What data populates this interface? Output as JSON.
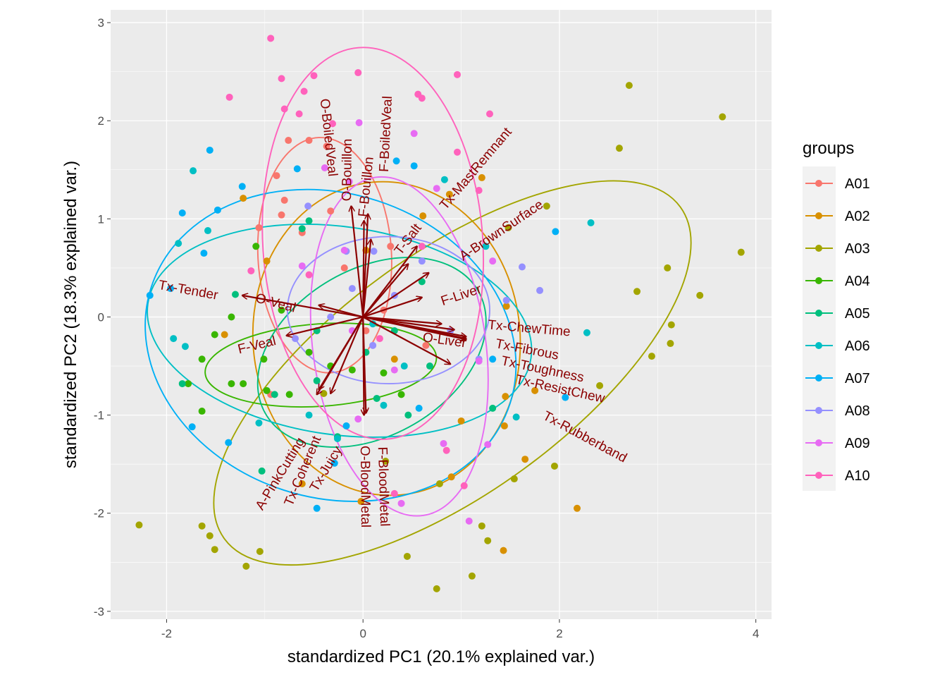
{
  "chart_data": {
    "type": "scatter",
    "subtype": "pca-biplot",
    "xlabel": "standardized PC1 (20.1% explained var.)",
    "ylabel": "standardized PC2 (18.3% explained var.)",
    "xlim": [
      -2.57,
      4.16
    ],
    "ylim": [
      -3.08,
      3.13
    ],
    "xticks": [
      -2,
      0,
      2,
      4
    ],
    "yticks": [
      -3,
      -2,
      -1,
      0,
      1,
      2,
      3
    ],
    "xtick_labels": [
      "-2",
      "0",
      "2",
      "4"
    ],
    "ytick_labels": [
      "-3",
      "-2",
      "-1",
      "0",
      "1",
      "2",
      "3"
    ],
    "grid": true,
    "legend": {
      "title": "groups",
      "position": "right"
    },
    "series": [
      {
        "name": "A01",
        "color": "#F8766D",
        "ellipse": {
          "cx": -0.39,
          "cy": 0.63,
          "a": 0.68,
          "b": 1.2,
          "angle": 3
        },
        "points": [
          [
            -0.55,
            1.8
          ],
          [
            -0.37,
            1.74
          ],
          [
            -0.76,
            1.8
          ],
          [
            -0.88,
            1.44
          ],
          [
            -0.8,
            1.19
          ],
          [
            -1.06,
            0.91
          ],
          [
            -0.83,
            1.04
          ],
          [
            -0.33,
            1.08
          ],
          [
            -0.19,
            0.5
          ],
          [
            0.28,
            0.72
          ],
          [
            -0.94,
            -0.79
          ],
          [
            -0.62,
            0.86
          ],
          [
            0.03,
            -0.14
          ],
          [
            0.21,
            0.07
          ],
          [
            0.64,
            -0.29
          ]
        ]
      },
      {
        "name": "A02",
        "color": "#D89000",
        "ellipse": {
          "cx": 0.24,
          "cy": -0.22,
          "a": 1.36,
          "b": 1.6,
          "angle": 5
        },
        "points": [
          [
            1.21,
            1.42
          ],
          [
            0.88,
            1.25
          ],
          [
            0.61,
            1.03
          ],
          [
            1.46,
            0.11
          ],
          [
            1.45,
            -0.81
          ],
          [
            1.44,
            -1.11
          ],
          [
            1.65,
            -1.45
          ],
          [
            2.18,
            -1.95
          ],
          [
            1.43,
            -2.38
          ],
          [
            -0.02,
            -1.88
          ],
          [
            -0.62,
            -1.7
          ],
          [
            -1.22,
            1.21
          ],
          [
            -1.41,
            -0.18
          ],
          [
            0.9,
            -1.63
          ],
          [
            1.0,
            -1.06
          ],
          [
            1.75,
            -0.75
          ],
          [
            -0.98,
            0.57
          ],
          [
            0.03,
            0.68
          ],
          [
            0.32,
            -0.43
          ]
        ]
      },
      {
        "name": "A03",
        "color": "#A3A500",
        "ellipse": {
          "cx": 0.91,
          "cy": -0.57,
          "a": 2.87,
          "b": 1.22,
          "angle": 36
        },
        "points": [
          [
            2.71,
            2.36
          ],
          [
            3.66,
            2.04
          ],
          [
            2.61,
            1.72
          ],
          [
            3.85,
            0.66
          ],
          [
            3.1,
            0.5
          ],
          [
            2.79,
            0.26
          ],
          [
            3.43,
            0.22
          ],
          [
            3.14,
            -0.08
          ],
          [
            3.13,
            -0.27
          ],
          [
            2.94,
            -0.4
          ],
          [
            2.41,
            -0.7
          ],
          [
            1.95,
            -1.52
          ],
          [
            1.54,
            -1.65
          ],
          [
            1.21,
            -2.13
          ],
          [
            1.27,
            -2.28
          ],
          [
            1.11,
            -2.64
          ],
          [
            0.75,
            -2.77
          ],
          [
            0.45,
            -2.44
          ],
          [
            0.78,
            -1.7
          ],
          [
            -2.28,
            -2.12
          ],
          [
            -1.64,
            -2.13
          ],
          [
            -1.56,
            -2.23
          ],
          [
            -1.51,
            -2.37
          ],
          [
            -1.19,
            -2.54
          ],
          [
            -1.05,
            -2.39
          ],
          [
            0.23,
            -1.47
          ],
          [
            1.87,
            1.13
          ],
          [
            1.48,
            0.91
          ],
          [
            -0.4,
            -0.78
          ]
        ]
      },
      {
        "name": "A04",
        "color": "#39B600",
        "ellipse": {
          "cx": -0.43,
          "cy": -0.49,
          "a": 1.18,
          "b": 0.42,
          "angle": 4
        },
        "points": [
          [
            -1.51,
            -0.18
          ],
          [
            -1.64,
            -0.43
          ],
          [
            -1.34,
            -0.68
          ],
          [
            -1.22,
            -0.68
          ],
          [
            -0.98,
            -0.75
          ],
          [
            -0.75,
            -0.79
          ],
          [
            -0.55,
            -0.36
          ],
          [
            -0.33,
            -0.5
          ],
          [
            -0.11,
            -0.54
          ],
          [
            0.21,
            -0.57
          ],
          [
            0.39,
            -0.79
          ],
          [
            -1.34,
            0
          ],
          [
            -1.09,
            0.72
          ],
          [
            -1.78,
            -0.68
          ],
          [
            -1.64,
            -0.96
          ],
          [
            -1.01,
            -0.43
          ],
          [
            -0.83,
            0.07
          ]
        ]
      },
      {
        "name": "A05",
        "color": "#00BF7D",
        "ellipse": {
          "cx": 0.09,
          "cy": -0.36,
          "a": 1.25,
          "b": 0.85,
          "angle": 30
        },
        "points": [
          [
            -0.55,
            0.98
          ],
          [
            -0.62,
            0.9
          ],
          [
            -1.3,
            0.23
          ],
          [
            -1.03,
            -1.57
          ],
          [
            -1.84,
            -0.68
          ],
          [
            -0.47,
            -0.65
          ],
          [
            0.03,
            -0.36
          ],
          [
            0.32,
            -0.14
          ],
          [
            0.6,
            0.36
          ],
          [
            0.68,
            -0.5
          ],
          [
            -0.26,
            -1.22
          ],
          [
            0.14,
            -0.83
          ],
          [
            1.32,
            -0.93
          ],
          [
            -0.47,
            -0.14
          ],
          [
            0.46,
            -1.0
          ],
          [
            -0.9,
            -0.79
          ]
        ]
      },
      {
        "name": "A06",
        "color": "#00BFC4",
        "ellipse": {
          "cx": -0.24,
          "cy": -0.14,
          "a": 1.97,
          "b": 1.06,
          "angle": -8
        },
        "points": [
          [
            0.83,
            1.4
          ],
          [
            2.32,
            0.96
          ],
          [
            2.28,
            -0.16
          ],
          [
            1.56,
            -1.02
          ],
          [
            -1.73,
            1.49
          ],
          [
            -1.88,
            0.75
          ],
          [
            -1.58,
            0.88
          ],
          [
            -1.81,
            -0.3
          ],
          [
            -1.93,
            -0.22
          ],
          [
            -1.06,
            -1.08
          ],
          [
            -0.55,
            -1.0
          ],
          [
            0.1,
            -0.07
          ],
          [
            0.42,
            -0.5
          ],
          [
            1.25,
            0.72
          ],
          [
            -0.26,
            -1.24
          ],
          [
            0.21,
            -0.9
          ]
        ]
      },
      {
        "name": "A07",
        "color": "#00B0F6",
        "ellipse": {
          "cx": -0.33,
          "cy": -0.29,
          "a": 1.92,
          "b": 1.55,
          "angle": -18
        },
        "points": [
          [
            -1.56,
            1.7
          ],
          [
            -1.23,
            1.33
          ],
          [
            -1.84,
            1.06
          ],
          [
            -2.17,
            0.22
          ],
          [
            -1.96,
            0.29
          ],
          [
            -1.74,
            -1.12
          ],
          [
            -1.37,
            -1.28
          ],
          [
            -0.47,
            -1.95
          ],
          [
            -0.29,
            -1.49
          ],
          [
            -0.17,
            -1.11
          ],
          [
            0.34,
            1.59
          ],
          [
            0.52,
            1.54
          ],
          [
            1.96,
            0.87
          ],
          [
            2.06,
            -0.82
          ],
          [
            -0.67,
            1.51
          ],
          [
            -1.48,
            1.09
          ],
          [
            -1.62,
            0.65
          ],
          [
            1.32,
            -0.43
          ],
          [
            0.57,
            -0.93
          ]
        ]
      },
      {
        "name": "A08",
        "color": "#9590FF",
        "ellipse": {
          "cx": 0.26,
          "cy": 0.07,
          "a": 1.03,
          "b": 0.75,
          "angle": 0
        },
        "points": [
          [
            1.62,
            0.51
          ],
          [
            1.8,
            0.27
          ],
          [
            1.46,
            0.17
          ],
          [
            -0.56,
            1.13
          ],
          [
            -0.17,
            0.67
          ],
          [
            0.11,
            0.67
          ],
          [
            0.32,
            0.22
          ],
          [
            0.6,
            0.57
          ],
          [
            -0.33,
            0
          ],
          [
            -0.69,
            -0.22
          ],
          [
            0.89,
            -0.14
          ],
          [
            -0.11,
            0.29
          ],
          [
            1.18,
            -0.43
          ],
          [
            0.1,
            -0.29
          ]
        ]
      },
      {
        "name": "A09",
        "color": "#E76BF3",
        "ellipse": {
          "cx": 0.37,
          "cy": -0.3,
          "a": 0.88,
          "b": 1.74,
          "angle": 8
        },
        "points": [
          [
            -0.04,
            1.98
          ],
          [
            0.52,
            1.87
          ],
          [
            -0.39,
            1.52
          ],
          [
            0.75,
            1.31
          ],
          [
            -0.14,
            1.38
          ],
          [
            1.08,
            -2.08
          ],
          [
            0.39,
            -1.9
          ],
          [
            1.27,
            -1.3
          ],
          [
            0.82,
            -1.29
          ],
          [
            -0.05,
            -1.04
          ],
          [
            1.18,
            -0.45
          ],
          [
            1.32,
            0.57
          ],
          [
            -0.62,
            0.52
          ],
          [
            -0.11,
            -0.14
          ],
          [
            0.32,
            -0.54
          ],
          [
            -0.19,
            0.68
          ]
        ]
      },
      {
        "name": "A10",
        "color": "#FF62BC",
        "ellipse": {
          "cx": 0.1,
          "cy": 0.75,
          "a": 1.12,
          "b": 2.0,
          "angle": 4
        },
        "points": [
          [
            -0.94,
            2.84
          ],
          [
            -0.05,
            2.49
          ],
          [
            -0.83,
            2.43
          ],
          [
            -0.5,
            2.46
          ],
          [
            -1.36,
            2.24
          ],
          [
            -0.6,
            2.3
          ],
          [
            0.96,
            2.47
          ],
          [
            0.56,
            2.27
          ],
          [
            0.6,
            2.23
          ],
          [
            1.29,
            2.07
          ],
          [
            -0.8,
            2.12
          ],
          [
            -0.65,
            2.07
          ],
          [
            -0.31,
            1.97
          ],
          [
            0.96,
            1.68
          ],
          [
            1.18,
            1.29
          ],
          [
            -1.14,
            0.47
          ],
          [
            0.6,
            0.72
          ],
          [
            -0.55,
            0.43
          ],
          [
            0.17,
            -0.22
          ],
          [
            0.85,
            -1.36
          ],
          [
            0.32,
            -1.8
          ],
          [
            1.03,
            -1.72
          ]
        ]
      }
    ],
    "loadings": [
      {
        "name": "O-BoiledVeal",
        "x": -0.12,
        "y": 1.13,
        "lx": -0.22,
        "ly": 1.83
      },
      {
        "name": "F-BoiledVeal",
        "x": 0.05,
        "y": 1.05,
        "lx": 0.12,
        "ly": 1.87
      },
      {
        "name": "O-Bouillon",
        "x": 0.01,
        "y": 0.98,
        "lx": -0.03,
        "ly": 1.5
      },
      {
        "name": "F-Bouillon",
        "x": 0.08,
        "y": 0.79,
        "lx": 0.09,
        "ly": 1.33
      },
      {
        "name": "Tx-MastRemnant",
        "x": 0.46,
        "y": 0.54,
        "lx": 1.15,
        "ly": 1.51
      },
      {
        "name": "A-BrownSurface",
        "x": 0.67,
        "y": 0.45,
        "lx": 1.41,
        "ly": 0.88
      },
      {
        "name": "T-Salt",
        "x": 0.55,
        "y": 0.72,
        "lx": 0.46,
        "ly": 0.79
      },
      {
        "name": "F-Liver",
        "x": 0.6,
        "y": 0.2,
        "lx": 1.0,
        "ly": 0.22
      },
      {
        "name": "Tx-Tender",
        "x": -1.23,
        "y": 0.22,
        "lx": -1.78,
        "ly": 0.27
      },
      {
        "name": "O-Veal",
        "x": -0.45,
        "y": 0.12,
        "lx": -0.89,
        "ly": 0.14
      },
      {
        "name": "F-Veal",
        "x": -0.78,
        "y": -0.19,
        "lx": -1.08,
        "ly": -0.29
      },
      {
        "name": "Tx-ChewTime",
        "x": 0.8,
        "y": -0.07,
        "lx": 1.69,
        "ly": -0.16
      },
      {
        "name": "O-Liver",
        "x": 0.93,
        "y": -0.13,
        "lx": 0.83,
        "ly": -0.24
      },
      {
        "name": "Tx-Fibrous",
        "x": 1.05,
        "y": -0.2,
        "lx": 1.75,
        "ly": -0.32
      },
      {
        "name": "Tx-Toughness",
        "x": 1.05,
        "y": -0.22,
        "lx": 1.79,
        "ly": -0.34
      },
      {
        "name": "Tx-ResistChew",
        "x": 1.05,
        "y": -0.23,
        "lx": 1.9,
        "ly": -0.36
      },
      {
        "name": "Tx-Rubberband",
        "x": 0.89,
        "y": -0.48,
        "lx": 1.82,
        "ly": -0.85
      },
      {
        "name": "Tx-Juicy",
        "x": -0.47,
        "y": -0.79,
        "lx": -0.65,
        "ly": -1.26
      },
      {
        "name": "A-PinkCutting",
        "x": -0.45,
        "y": -0.74,
        "lx": -0.75,
        "ly": -1.54
      },
      {
        "name": "Tx-Coherent",
        "x": -0.33,
        "y": -0.78,
        "lx": -0.55,
        "ly": -1.51
      },
      {
        "name": "O-BloodMetal",
        "x": 0.01,
        "y": -1.0,
        "lx": 0.09,
        "ly": -1.72
      },
      {
        "name": "F-BloodMetal",
        "x": 0.03,
        "y": -0.98,
        "lx": 0.11,
        "ly": -1.7
      }
    ],
    "loading_color": "#8B0000"
  }
}
